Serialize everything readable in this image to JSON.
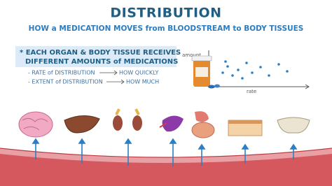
{
  "header": {
    "title": "DISTRIBUTION",
    "subtitle": "HOW a MEDICATION MOVES from BLOODSTREAM to BODY TISSUES"
  },
  "note": {
    "lines": [
      "* EACH ORGAN & BODY TISSUE RECEIVES",
      "DIFFERENT AMOUNTS of MEDICATIONS"
    ]
  },
  "items": [
    {
      "label": "- RATE of DISTRIBUTION",
      "result": "HOW QUICKLY"
    },
    {
      "label": "- EXTENT of DISTRIBUTION",
      "result": "HOW MUCH"
    }
  ],
  "graph": {
    "y_label": "amount",
    "x_label": "rate"
  }
}
